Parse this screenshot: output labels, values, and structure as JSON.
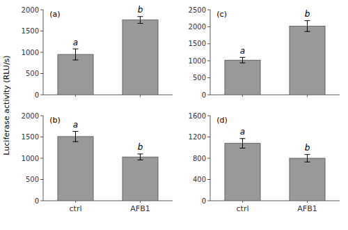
{
  "chart_data": [
    {
      "type": "bar",
      "title": "(a)",
      "ylabel": "Luciferase activity (RLU/s)",
      "categories": [
        null,
        null
      ],
      "values": [
        950,
        1760
      ],
      "errors": [
        130,
        80
      ],
      "annotations": [
        "a",
        "b"
      ],
      "color": "#999999",
      "ylim": [
        0,
        2000
      ],
      "yticks": [
        0,
        500,
        1000,
        1500,
        2000
      ]
    },
    {
      "type": "bar",
      "title": "(c)",
      "categories": [
        null,
        null
      ],
      "values": [
        1020,
        2020
      ],
      "errors": [
        80,
        160
      ],
      "annotations": [
        "a",
        "b"
      ],
      "color": "#999999",
      "ylim": [
        0,
        2500
      ],
      "yticks": [
        0,
        500,
        1000,
        1500,
        2000,
        2500
      ]
    },
    {
      "type": "bar",
      "title": "(b)",
      "categories": [
        "ctrl",
        "AFB1"
      ],
      "values": [
        1510,
        1030
      ],
      "errors": [
        120,
        70
      ],
      "annotations": [
        "a",
        "b"
      ],
      "color": "#999999",
      "ylim": [
        0,
        2000
      ],
      "yticks": [
        0,
        500,
        1000,
        1500,
        2000
      ]
    },
    {
      "type": "bar",
      "title": "(d)",
      "categories": [
        "ctrl",
        "AFB1"
      ],
      "values": [
        1080,
        800
      ],
      "errors": [
        90,
        70
      ],
      "annotations": [
        "a",
        "b"
      ],
      "color": "#999999",
      "ylim": [
        0,
        1600
      ],
      "yticks": [
        0,
        400,
        800,
        1200,
        1600
      ]
    }
  ]
}
